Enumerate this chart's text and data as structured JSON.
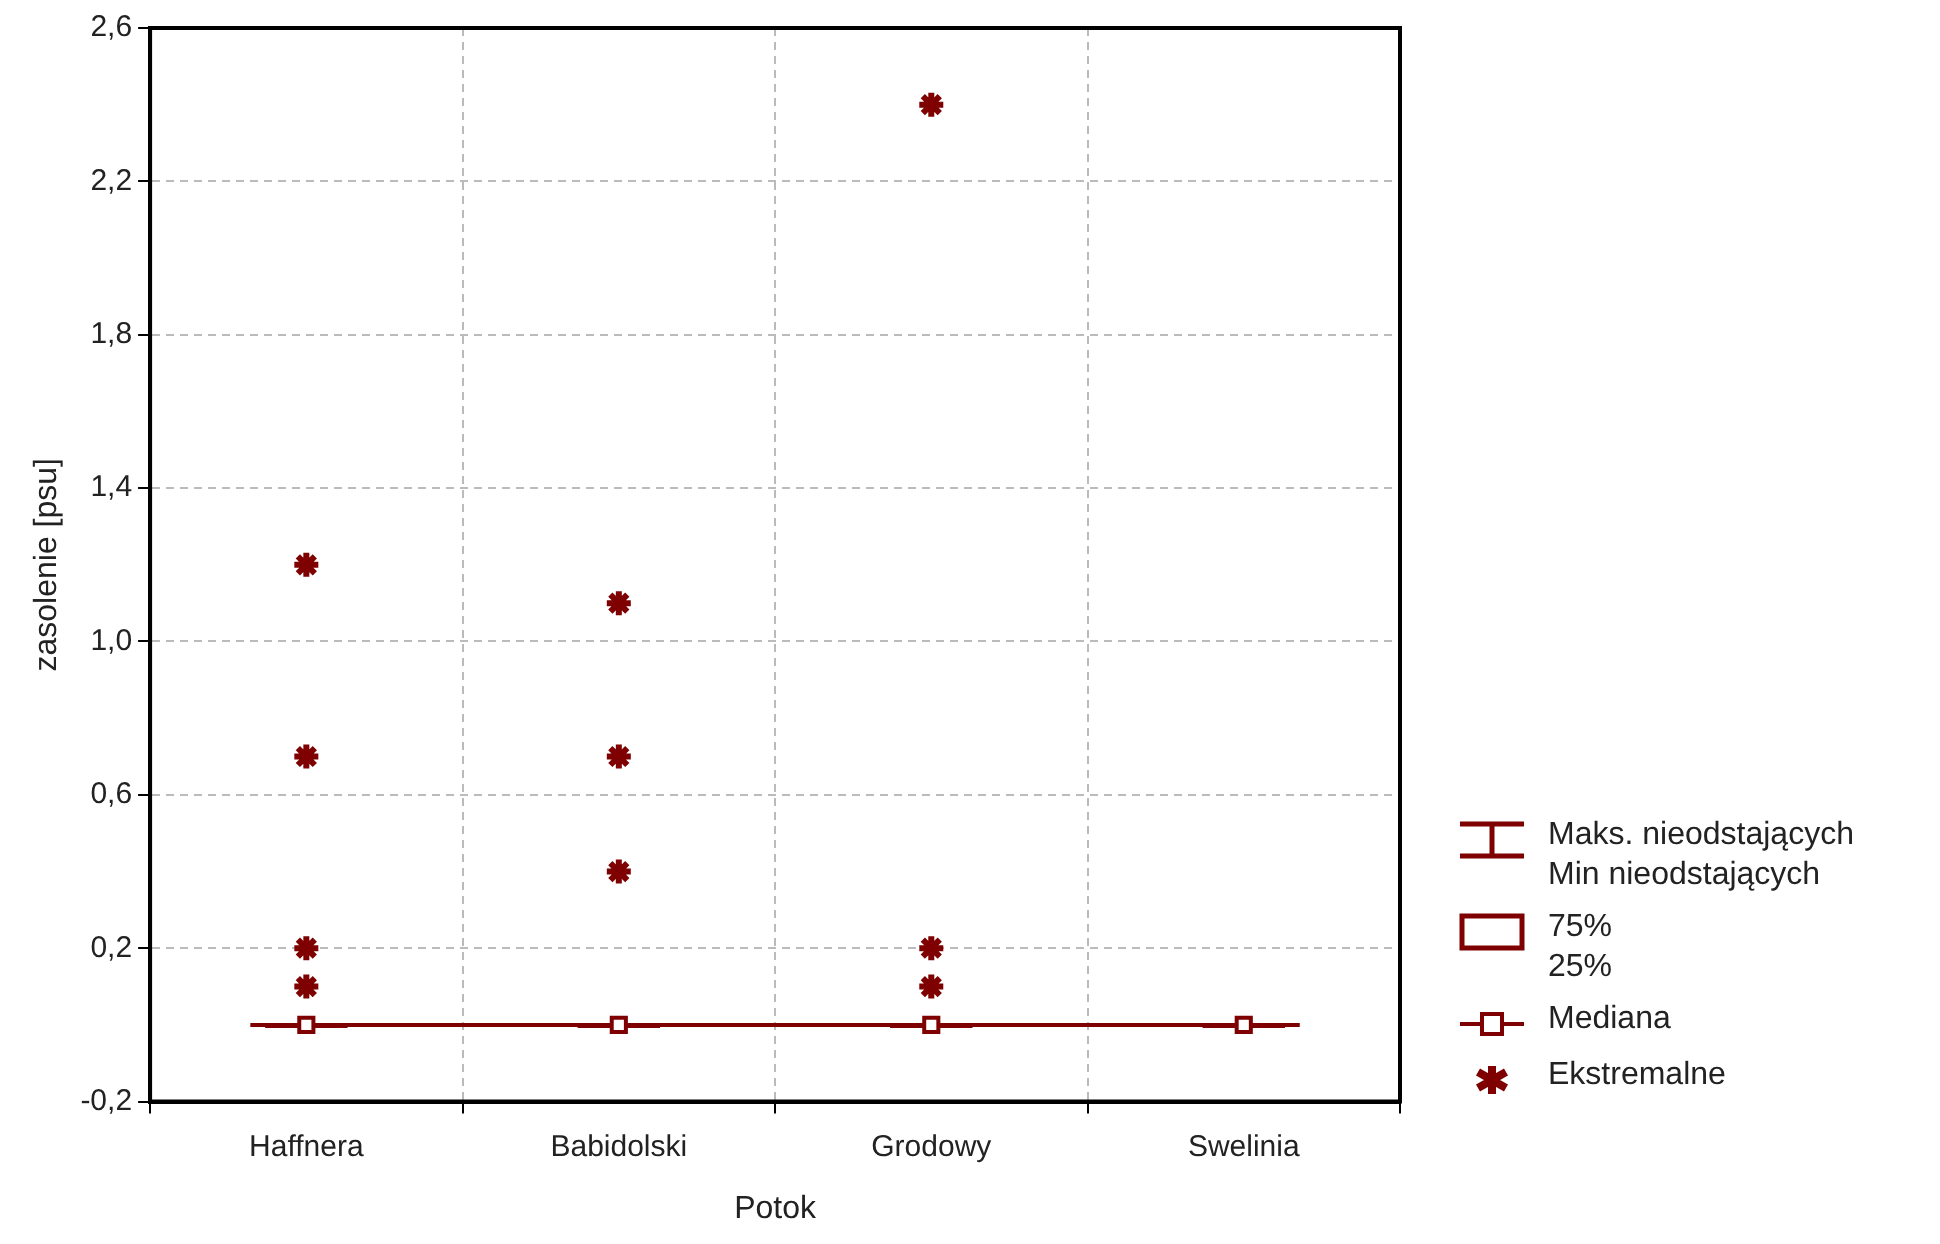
{
  "chart_data": {
    "type": "box",
    "xlabel": "Potok",
    "ylabel": "zasolenie [psu]",
    "categories": [
      "Haffnera",
      "Babidolski",
      "Grodowy",
      "Swelinia"
    ],
    "ylim": [
      -0.2,
      2.6
    ],
    "yticks": [
      {
        "value": -0.2,
        "label": "-0,2"
      },
      {
        "value": 0.2,
        "label": "0,2"
      },
      {
        "value": 0.6,
        "label": "0,6"
      },
      {
        "value": 1.0,
        "label": "1,0"
      },
      {
        "value": 1.4,
        "label": "1,4"
      },
      {
        "value": 1.8,
        "label": "1,8"
      },
      {
        "value": 2.2,
        "label": "2,2"
      },
      {
        "value": 2.6,
        "label": "2,6"
      }
    ],
    "grid": true,
    "legend": "right",
    "annotations": [
      "Maks. nieodstających",
      "Min nieodstających",
      "75%",
      "25%"
    ],
    "series": [
      {
        "type": "line",
        "name": "Mediana",
        "color": "#7f0000",
        "marker": "square",
        "line_style": "solid",
        "values": [
          0,
          0,
          0,
          0
        ]
      },
      {
        "color": "#7f0000",
        "boxes": [
          {
            "low": 0,
            "q1": 0,
            "median": 0,
            "q3": 0,
            "high": 0
          },
          {
            "low": 0,
            "q1": 0,
            "median": 0,
            "q3": 0,
            "high": 0
          },
          {
            "low": 0,
            "q1": 0,
            "median": 0,
            "q3": 0,
            "high": 0
          },
          {
            "low": 0,
            "q1": 0,
            "median": 0,
            "q3": 0,
            "high": 0
          }
        ]
      },
      {
        "type": "scatter",
        "name": "Ekstremalne",
        "color": "#7f0000",
        "marker": "cross",
        "x": [
          "Haffnera",
          "Haffnera",
          "Haffnera",
          "Haffnera",
          "Babidolski",
          "Babidolski",
          "Babidolski",
          "Grodowy",
          "Grodowy",
          "Grodowy"
        ],
        "values": [
          1.2,
          0.7,
          0.2,
          0.1,
          1.1,
          0.7,
          0.4,
          2.4,
          0.2,
          0.1
        ]
      }
    ]
  }
}
